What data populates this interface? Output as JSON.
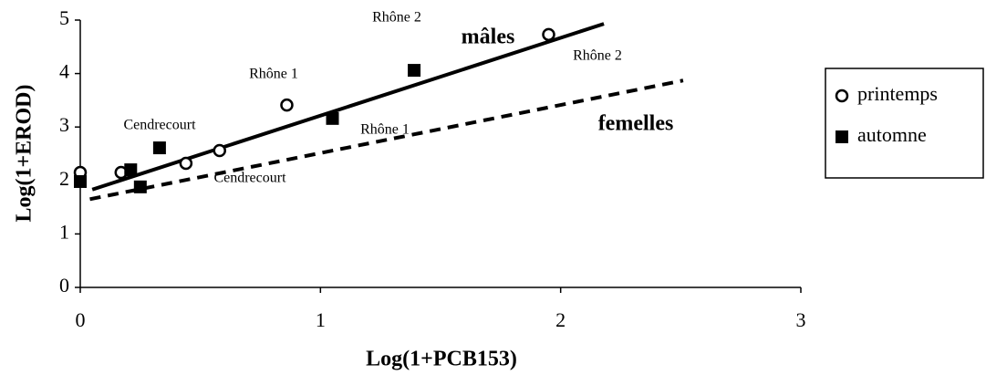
{
  "chart_data": {
    "type": "scatter",
    "xlabel": "Log(1+PCB153)",
    "ylabel": "Log(1+EROD)",
    "xlim": [
      0,
      3
    ],
    "xticks": [
      0,
      1,
      2,
      3
    ],
    "ylim": [
      0,
      5
    ],
    "yticks": [
      0,
      1,
      2,
      3,
      4,
      5
    ],
    "grid": false,
    "legend": "right",
    "series": [
      {
        "name": "printemps",
        "marker": "circle",
        "color": "#000000",
        "x": [
          0,
          0.17,
          0.44,
          0.58,
          0.86,
          1.95
        ],
        "values": [
          2.15,
          2.15,
          2.32,
          2.56,
          3.41,
          4.73
        ]
      },
      {
        "name": "automne",
        "marker": "square",
        "color": "#000000",
        "x": [
          0,
          0.21,
          0.25,
          0.33,
          1.05,
          1.39
        ],
        "values": [
          1.98,
          2.2,
          1.88,
          2.61,
          3.16,
          4.06
        ]
      }
    ],
    "lines": [
      {
        "style": "solid",
        "x": [
          0.05,
          2.18
        ],
        "values": [
          1.83,
          4.93
        ]
      },
      {
        "style": "dashed",
        "x": [
          0.04,
          2.51
        ],
        "values": [
          1.65,
          3.87
        ]
      }
    ],
    "annotations": [
      "Rhône 2",
      "mâles",
      "Rhône 2",
      "Rhône 1",
      "Cendrecourt",
      "Rhône 1",
      "femelles",
      "Cendrecourt"
    ]
  }
}
